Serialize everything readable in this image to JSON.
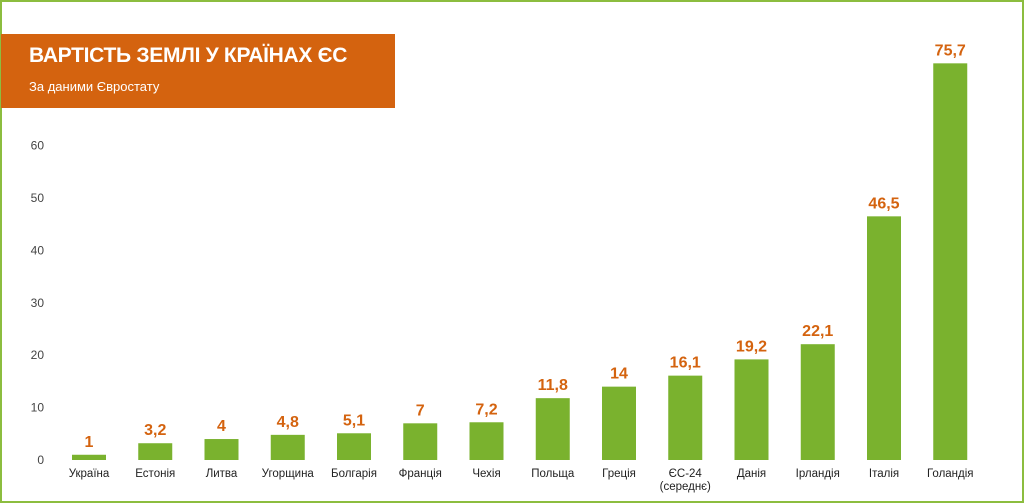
{
  "header": {
    "title": "ВАРТІСТЬ ЗЕМЛІ У КРАЇНАХ ЄС",
    "subtitle": "За даними Євростату"
  },
  "colors": {
    "bar": "#7ab22e",
    "value_label": "#d4630f",
    "title_background": "#d4630f",
    "frame": "#8cbd3f"
  },
  "chart_data": {
    "type": "bar",
    "title": "ВАРТІСТЬ ЗЕМЛІ У КРАЇНАХ ЄС",
    "subtitle": "За даними Євростату",
    "xlabel": "",
    "ylabel": "",
    "ylim": [
      0,
      60
    ],
    "yticks": [
      0,
      10,
      20,
      30,
      40,
      50,
      60
    ],
    "grid": false,
    "categories": [
      "Україна",
      "Естонія",
      "Литва",
      "Угорщина",
      "Болгарія",
      "Франція",
      "Чехія",
      "Польща",
      "Греція",
      "ЄС-24\n(середнє)",
      "Данія",
      "Ірландія",
      "Італія",
      "Голандія"
    ],
    "values": [
      1,
      3.2,
      4,
      4.8,
      5.1,
      7,
      7.2,
      11.8,
      14,
      16.1,
      19.2,
      22.1,
      46.5,
      75.7
    ],
    "value_labels": [
      "1",
      "3,2",
      "4",
      "4,8",
      "5,1",
      "7",
      "7,2",
      "11,8",
      "14",
      "16,1",
      "19,2",
      "22,1",
      "46,5",
      "75,7"
    ]
  }
}
